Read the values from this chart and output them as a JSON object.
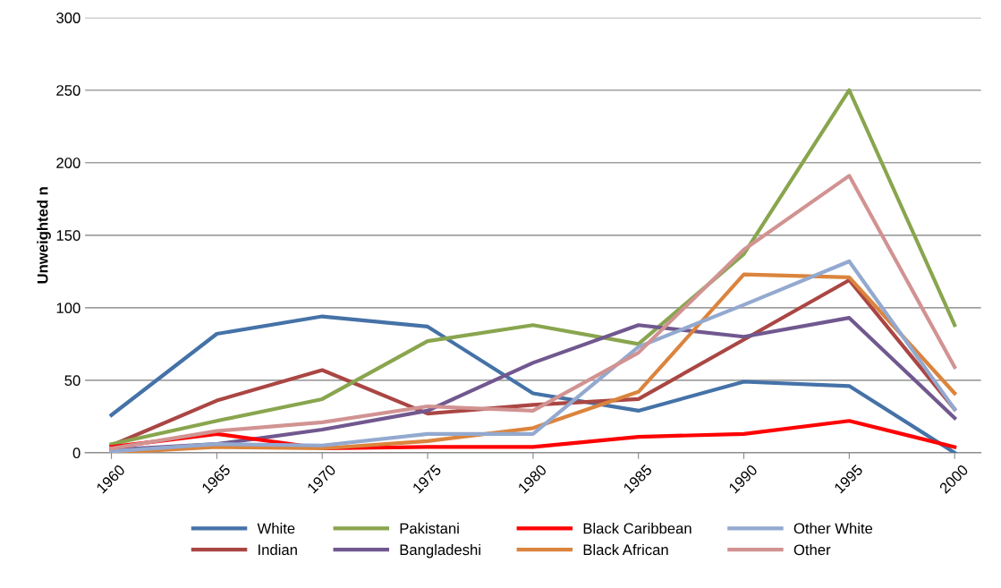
{
  "chart_data": {
    "type": "line",
    "ylabel": "Unweighted n",
    "categories": [
      "1960",
      "1965",
      "1970",
      "1975",
      "1980",
      "1985",
      "1990",
      "1995",
      "2000"
    ],
    "ylim": [
      0,
      300
    ],
    "yticks": [
      0,
      50,
      100,
      150,
      200,
      250,
      300
    ],
    "grid": "y",
    "legend": "bottom",
    "marker": "none",
    "series": [
      {
        "name": "White",
        "color": "#4572a7",
        "values": [
          26,
          82,
          94,
          87,
          41,
          29,
          49,
          46,
          0
        ]
      },
      {
        "name": "Indian",
        "color": "#aa4643",
        "values": [
          5,
          36,
          57,
          27,
          33,
          37,
          78,
          119,
          30
        ]
      },
      {
        "name": "Pakistani",
        "color": "#89a54e",
        "values": [
          6,
          22,
          37,
          77,
          88,
          75,
          137,
          250,
          88
        ]
      },
      {
        "name": "Bangladeshi",
        "color": "#71588f",
        "values": [
          2,
          6,
          16,
          29,
          62,
          88,
          80,
          93,
          24
        ]
      },
      {
        "name": "Black Caribbean",
        "color": "#ff0000",
        "values": [
          4,
          13,
          3,
          4,
          4,
          11,
          13,
          22,
          4
        ]
      },
      {
        "name": "Black African",
        "color": "#db843d",
        "values": [
          0,
          4,
          3,
          8,
          17,
          42,
          123,
          121,
          41
        ]
      },
      {
        "name": "Other White",
        "color": "#93a9cf",
        "values": [
          1,
          6,
          5,
          13,
          13,
          73,
          102,
          132,
          30
        ]
      },
      {
        "name": "Other",
        "color": "#d19392",
        "values": [
          3,
          15,
          21,
          32,
          29,
          69,
          140,
          191,
          59
        ]
      }
    ]
  }
}
